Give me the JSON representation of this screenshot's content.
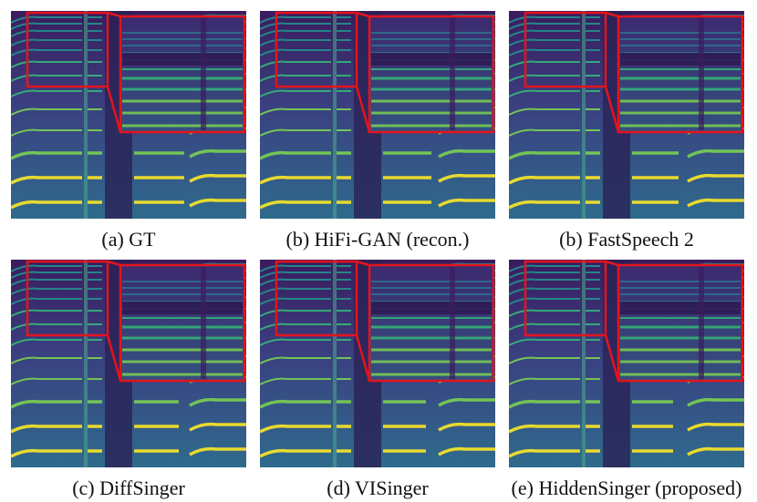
{
  "panels": [
    {
      "caption": "(a) GT"
    },
    {
      "caption": "(b) HiFi-GAN (recon.)"
    },
    {
      "caption": "(b) FastSpeech 2"
    },
    {
      "caption": "(c) DiffSinger"
    },
    {
      "caption": "(d) VISinger"
    },
    {
      "caption": "(e) HiddenSinger (proposed)"
    }
  ]
}
